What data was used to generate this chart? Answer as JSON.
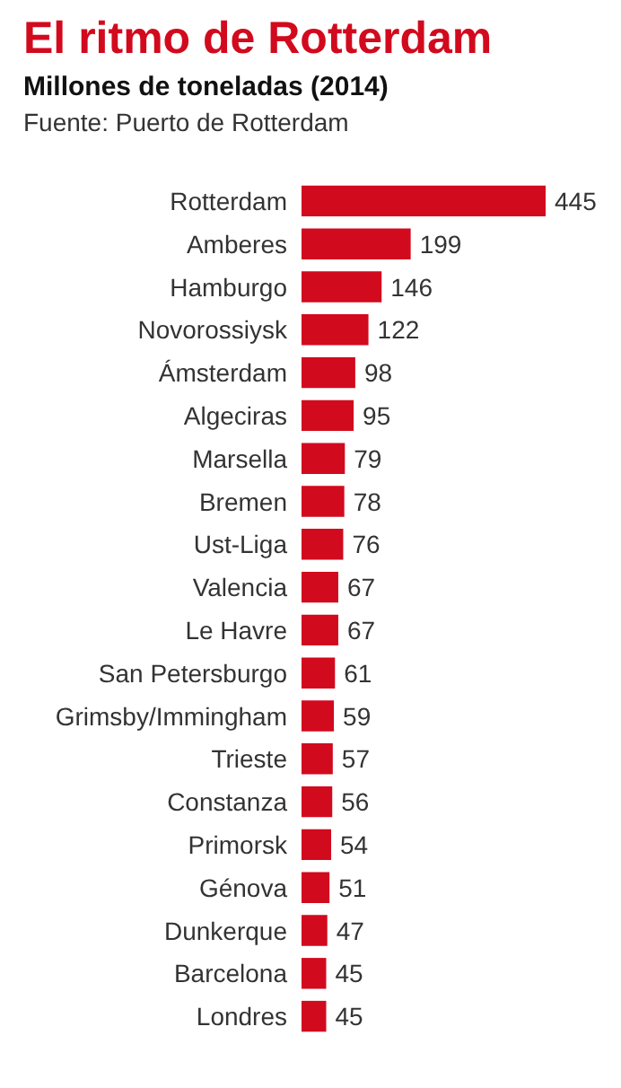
{
  "chart_data": {
    "type": "bar",
    "orientation": "horizontal",
    "title": "El ritmo de Rotterdam",
    "subtitle": "Millones de toneladas (2014)",
    "annotations": [
      "Fuente: Puerto de Rotterdam"
    ],
    "categories": [
      "Rotterdam",
      "Amberes",
      "Hamburgo",
      "Novorossiysk",
      "Ámsterdam",
      "Algeciras",
      "Marsella",
      "Bremen",
      "Ust-Liga",
      "Valencia",
      "Le Havre",
      "San Petersburgo",
      "Grimsby/Immingham",
      "Trieste",
      "Constanza",
      "Primorsk",
      "Génova",
      "Dunkerque",
      "Barcelona",
      "Londres"
    ],
    "values": [
      445,
      199,
      146,
      122,
      98,
      95,
      79,
      78,
      76,
      67,
      67,
      61,
      59,
      57,
      56,
      54,
      51,
      47,
      45,
      45
    ],
    "color": "#d20a1e",
    "data_labels": true,
    "tick_labels": "y"
  }
}
